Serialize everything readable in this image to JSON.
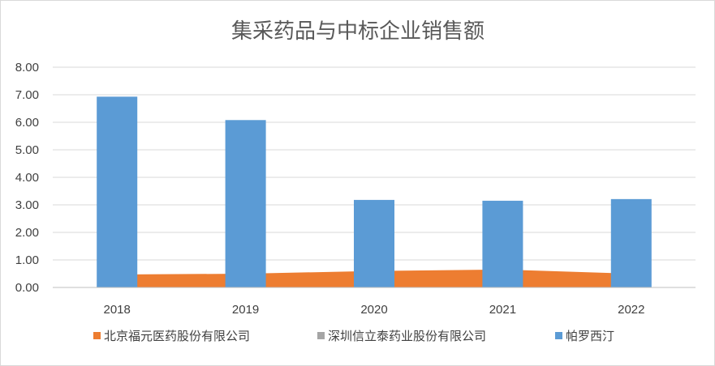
{
  "chart_data": {
    "type": "bar",
    "title": "集采药品与中标企业销售额",
    "categories": [
      "2018",
      "2019",
      "2020",
      "2021",
      "2022"
    ],
    "ylim": [
      0,
      8
    ],
    "yticks": [
      "0.00",
      "1.00",
      "2.00",
      "3.00",
      "4.00",
      "5.00",
      "6.00",
      "7.00",
      "8.00"
    ],
    "grid": true,
    "legend_position": "bottom",
    "series": [
      {
        "name": "北京福元医药股份有限公司",
        "type": "area",
        "color": "#ED7D31",
        "values": [
          0.47,
          0.5,
          0.6,
          0.65,
          0.5
        ]
      },
      {
        "name": "深圳信立泰药业股份有限公司",
        "type": "area",
        "color": "#A5A5A5",
        "values": [
          0,
          0,
          0,
          0,
          0
        ]
      },
      {
        "name": "帕罗西汀",
        "type": "bar",
        "color": "#5B9BD5",
        "values": [
          6.93,
          6.08,
          3.18,
          3.15,
          3.21
        ]
      }
    ]
  }
}
